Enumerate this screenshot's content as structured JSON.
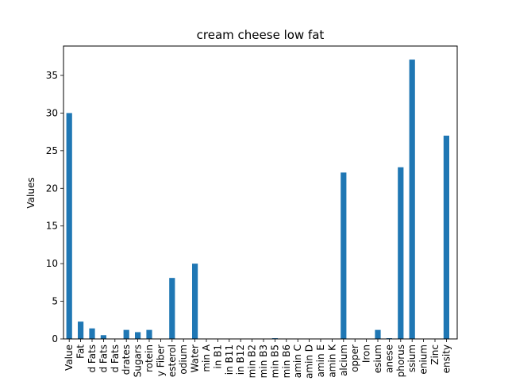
{
  "chart_data": {
    "type": "bar",
    "title": "cream cheese low fat",
    "xlabel": "",
    "ylabel": "Values",
    "ylim": [
      0,
      38.9
    ],
    "yticks": [
      0,
      5,
      10,
      15,
      20,
      25,
      30,
      35
    ],
    "grid": false,
    "legend": "none",
    "bar_color": "#1f77b4",
    "categories": [
      "Value",
      "Fat",
      "d Fats",
      "d Fats",
      "d Fats",
      "drates",
      "Sugars",
      "rotein",
      "y Fiber",
      "esterol",
      "odium",
      "Water",
      "min A",
      "in B1",
      "in B11",
      "in B12",
      "min B2",
      "min B3",
      "min B5",
      "min B6",
      "amin C",
      "amin D",
      "amin E",
      "amin K",
      "alcium",
      "opper",
      "Iron",
      "esium",
      "anese",
      "phorus",
      "ssium",
      "enium",
      "Zinc",
      "ensity"
    ],
    "values": [
      30.0,
      2.3,
      1.4,
      0.5,
      0.0,
      1.2,
      0.9,
      1.2,
      0.0,
      8.1,
      0.0,
      10.0,
      0.0,
      0.05,
      0.0,
      0.0,
      0.0,
      0.05,
      0.1,
      0.05,
      0.0,
      0.0,
      0.0,
      0.0,
      22.1,
      0.0,
      0.0,
      1.2,
      0.1,
      22.8,
      37.1,
      0.0,
      0.0,
      27.0
    ]
  }
}
